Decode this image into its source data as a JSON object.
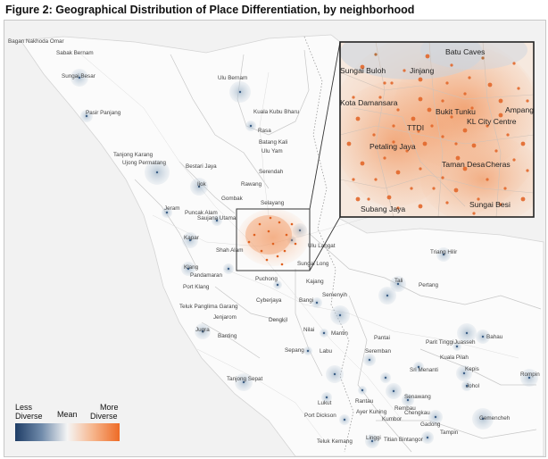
{
  "figure": {
    "title": "Figure 2: Geographical Distribution of Place Differentiation, by neighborhood"
  },
  "legend": {
    "low_line1": "Less",
    "low_line2": "Diverse",
    "mid": "Mean",
    "high_line1": "More",
    "high_line2": "Diverse",
    "colors": {
      "low": "#2c4a74",
      "mid": "#f2f2f2",
      "high": "#f07a3a"
    }
  },
  "map_labels": [
    "Bagan Nakhoda Omar",
    "Sabak Bernam",
    "Sungai Besar",
    "Pasir Panjang",
    "Tanjong Karang",
    "Ujong Permatang",
    "Bestari Jaya",
    "Ijok",
    "Jeram",
    "Puncak Alam",
    "Saujana Utama",
    "Kapar",
    "Klang",
    "Pandamaran",
    "Port Klang",
    "Shah Alam",
    "Teluk Panglima Garang",
    "Jenjarom",
    "Jugra",
    "Banting",
    "Tanjong Sepat",
    "Ulu Bernam",
    "Kuala Kubu Bharu",
    "Rasa",
    "Batang Kali",
    "Ulu Yam",
    "Serendah",
    "Rawang",
    "Gombak",
    "Selayang",
    "Ulu Langat",
    "Sungai Long",
    "Puchong",
    "Kajang",
    "Semenyih",
    "Cyberjaya",
    "Bangi",
    "Dengkil",
    "Nilai",
    "Mantin",
    "Sepang",
    "Labu",
    "Pantai",
    "Seremban",
    "Rantau",
    "Lukut",
    "Port Dickson",
    "Ayer Kuning",
    "Kumbor",
    "Linggi",
    "Teluk Kemang",
    "Titian Bintangor",
    "Senawang",
    "Rembau",
    "Chengkau",
    "Gadong",
    "Tampin",
    "Triang Hilir",
    "Tali",
    "Pertang",
    "Parit Tinggi",
    "Juasseh",
    "Bahau",
    "Kuala Pilah",
    "Sri Menanti",
    "Kepis",
    "Johol",
    "Rompin",
    "Gemencheh"
  ],
  "inset_labels": [
    "Batu Caves",
    "Sungai Buloh",
    "Jinjang",
    "Kota Damansara",
    "Ampang",
    "Bukit Tunku",
    "KL City Centre",
    "TTDI",
    "Petaling Jaya",
    "Taman Desa",
    "Cheras",
    "Subang Jaya",
    "Sungai Besi"
  ]
}
